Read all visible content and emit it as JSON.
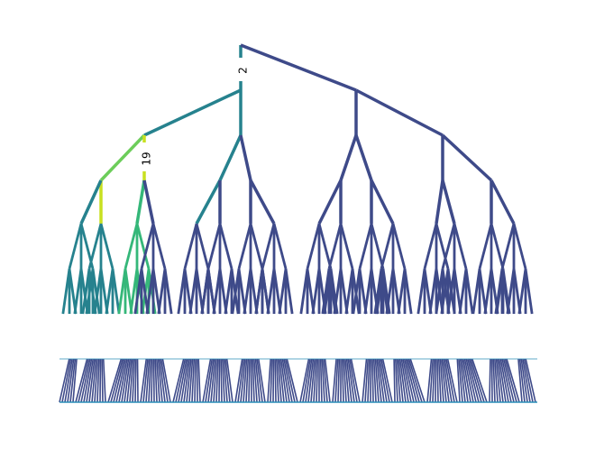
{
  "figure": {
    "kind": "hierarchical cluster tree (condensed tree)",
    "colormap": "viridis",
    "annotations": [
      {
        "id": "split-2",
        "text": "2"
      },
      {
        "id": "split-19",
        "text": "19"
      }
    ],
    "colors": {
      "dominant_edge": "#3e4a89",
      "accent_teal": "#26828e",
      "accent_green": "#35b779",
      "accent_lime": "#6ccd5a",
      "accent_yellow": "#c8e020",
      "base_line": "#2a8fb8"
    }
  }
}
